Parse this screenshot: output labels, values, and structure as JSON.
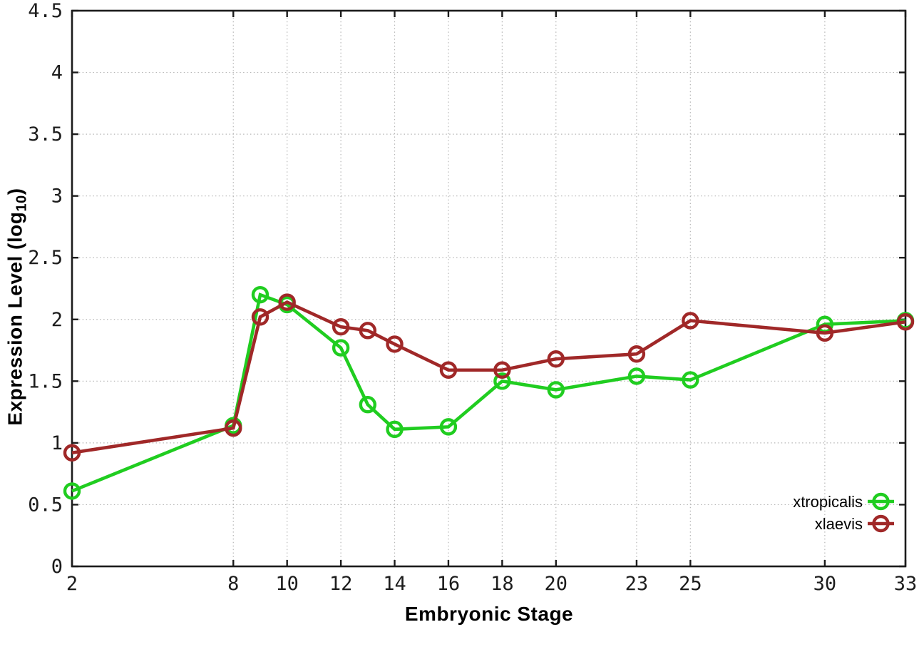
{
  "figure": {
    "background": "#ffffff",
    "plot_border_color": "#1c1c1c",
    "grid_color": "#b5b5b5",
    "tick_text_color": "#1c1c1c"
  },
  "axis_labels": {
    "x": "Embryonic Stage",
    "y_prefix": "Expression Level (log",
    "y_sub": "10",
    "y_suffix": ")"
  },
  "chart_data": {
    "type": "line",
    "title": "",
    "xlabel": "Embryonic Stage",
    "ylabel": "Expression Level (log10)",
    "xlim": [
      2,
      33
    ],
    "ylim": [
      0,
      4.5
    ],
    "grid": true,
    "legend_position": "inside-bottom-right",
    "x_ticks": [
      2,
      8,
      10,
      12,
      14,
      16,
      18,
      20,
      23,
      25,
      30,
      33
    ],
    "x_tick_labels": [
      "2",
      "8",
      "10",
      "12",
      "14",
      "16",
      "18",
      "20",
      "23",
      "25",
      "30",
      "33"
    ],
    "y_ticks": [
      0,
      0.5,
      1,
      1.5,
      2,
      2.5,
      3,
      3.5,
      4,
      4.5
    ],
    "y_tick_labels": [
      "0",
      "0.5",
      "1",
      "1.5",
      "2",
      "2.5",
      "3",
      "3.5",
      "4",
      "4.5"
    ],
    "x": [
      2,
      8,
      9,
      10,
      12,
      13,
      14,
      16,
      18,
      20,
      23,
      25,
      30,
      33
    ],
    "series": [
      {
        "name": "xtropicalis",
        "color": "#20cd20",
        "values": [
          0.61,
          1.14,
          2.2,
          2.12,
          1.77,
          1.31,
          1.11,
          1.13,
          1.5,
          1.43,
          1.54,
          1.51,
          1.96,
          1.99
        ]
      },
      {
        "name": "xlaevis",
        "color": "#a02828",
        "values": [
          0.92,
          1.12,
          2.02,
          2.14,
          1.94,
          1.91,
          1.8,
          1.59,
          1.59,
          1.68,
          1.72,
          1.99,
          1.89,
          1.98
        ]
      }
    ]
  }
}
